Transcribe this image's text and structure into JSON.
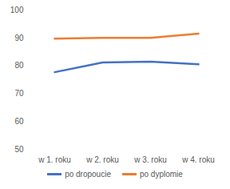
{
  "chart_data": {
    "type": "line",
    "categories": [
      "w 1. roku",
      "w 2. roku",
      "w 3. roku",
      "w 4. roku"
    ],
    "series": [
      {
        "name": "po dropoucie",
        "color": "#4472c4",
        "values": [
          77.7,
          81.2,
          81.5,
          80.5
        ]
      },
      {
        "name": "po dyplomie",
        "color": "#ed7d31",
        "values": [
          89.7,
          90.0,
          90.0,
          91.5
        ]
      }
    ],
    "ylim": [
      50,
      100
    ],
    "yticks": [
      50,
      60,
      70,
      80,
      90,
      100
    ],
    "grid": false,
    "legend": "bottom"
  }
}
